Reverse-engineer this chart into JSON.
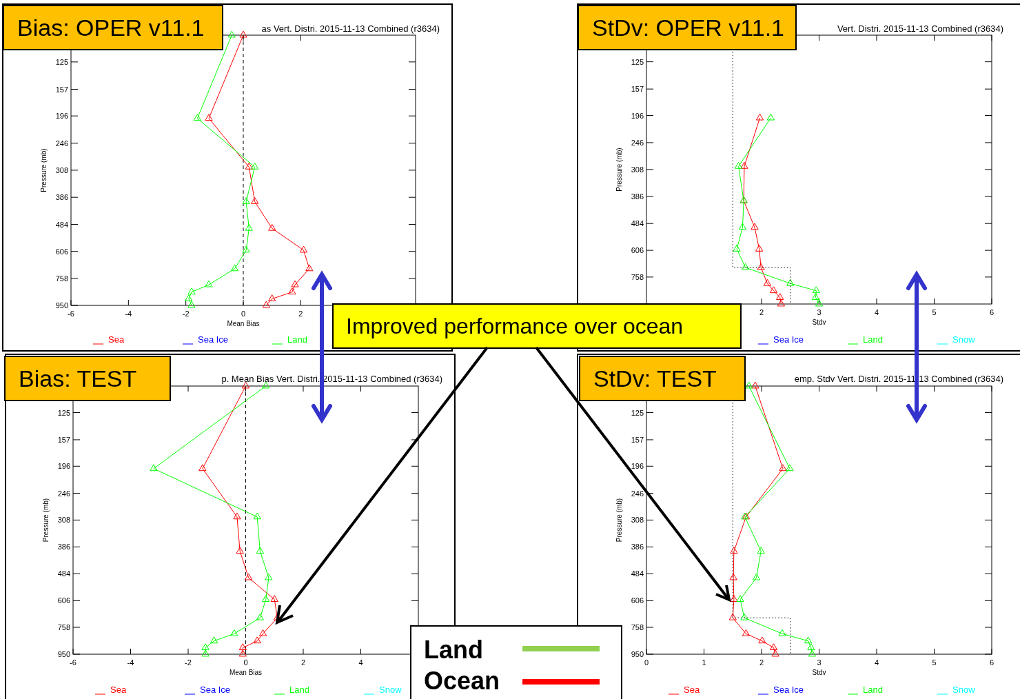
{
  "chart_data": [
    {
      "type": "line",
      "title": "Bias: OPER v11.1",
      "subtitle": "as Vert. Distri. 2015-11-13 Combined (r3634)",
      "xlabel": "Mean Bias",
      "ylabel": "Pressure (mb)",
      "xlim": [
        -6,
        6
      ],
      "xticks": [
        -6,
        -4,
        -2,
        0,
        2
      ],
      "ylim": [
        950,
        100
      ],
      "yticks": [
        125,
        157,
        196,
        246,
        308,
        386,
        484,
        606,
        758,
        950
      ],
      "log": "y",
      "marker": "triangle",
      "legend": "bottom",
      "ref_lines": [
        {
          "axis": "x",
          "value": 0,
          "color": "#000000",
          "line_style": "dashed"
        }
      ],
      "series": [
        {
          "name": "Sea",
          "color": "#ff0000",
          "x": [
            0.0,
            -1.2,
            0.2,
            0.4,
            1.0,
            2.1,
            2.3,
            1.8,
            1.7,
            1.0,
            0.8
          ],
          "values": [
            100,
            200,
            300,
            400,
            500,
            600,
            700,
            800,
            850,
            900,
            950
          ]
        },
        {
          "name": "Sea Ice",
          "color": "#0000ff"
        },
        {
          "name": "Land",
          "color": "#00ff00",
          "x": [
            -0.4,
            -1.6,
            0.4,
            0.1,
            0.2,
            0.1,
            -0.3,
            -1.2,
            -1.8,
            -1.9,
            -1.8
          ],
          "values": [
            100,
            200,
            300,
            400,
            500,
            600,
            700,
            800,
            850,
            900,
            950
          ]
        }
      ]
    },
    {
      "type": "line",
      "title": "StDv: OPER v11.1",
      "subtitle": "Vert. Distri. 2015-11-13 Combined (r3634)",
      "xlabel": "Stdv",
      "ylabel": "Pressure (mb)",
      "xlim": [
        0,
        6
      ],
      "xticks": [
        2,
        3,
        4,
        5,
        6
      ],
      "ylim": [
        950,
        100
      ],
      "yticks": [
        125,
        157,
        196,
        246,
        308,
        386,
        484,
        606,
        758
      ],
      "log": "y",
      "marker": "triangle",
      "legend": "bottom",
      "series": [
        {
          "color": "#ff0000",
          "x": [
            null,
            1.97,
            1.7,
            1.69,
            1.88,
            1.96,
            1.99,
            2.1,
            2.21,
            2.32,
            2.34
          ],
          "values": [
            null,
            200,
            300,
            400,
            500,
            600,
            700,
            800,
            850,
            900,
            950
          ]
        },
        {
          "name": "Sea Ice",
          "color": "#0000ff"
        },
        {
          "name": "Land",
          "color": "#00ff00",
          "x": [
            null,
            2.16,
            1.6,
            1.69,
            1.67,
            1.57,
            1.72,
            2.5,
            2.95,
            2.94,
            3.0
          ],
          "values": [
            null,
            200,
            300,
            400,
            500,
            600,
            700,
            800,
            850,
            900,
            950
          ]
        },
        {
          "name": "Snow",
          "color": "#00ffff"
        },
        {
          "type": "line",
          "color": "#000000",
          "line_style": "dotted",
          "marker": "none",
          "x": [
            1.5,
            1.5,
            2.5,
            2.5
          ],
          "values": [
            115,
            700,
            700,
            950
          ]
        }
      ]
    },
    {
      "type": "line",
      "title": "Bias: TEST",
      "subtitle": "p. Mean Bias Vert. Distri. 2015-11-13 Combined (r3634)",
      "xlabel": "Mean Bias",
      "ylabel": "Pressure (mb)",
      "xlim": [
        -6,
        6
      ],
      "xticks": [
        -6,
        -4,
        -2,
        0,
        2,
        4
      ],
      "ylim": [
        950,
        100
      ],
      "yticks": [
        125,
        157,
        196,
        246,
        308,
        386,
        484,
        606,
        758,
        950
      ],
      "log": "y",
      "marker": "triangle",
      "legend": "bottom",
      "ref_lines": [
        {
          "axis": "x",
          "value": 0,
          "color": "#000000",
          "line_style": "dashed"
        }
      ],
      "series": [
        {
          "name": "Sea",
          "color": "#ff0000",
          "x": [
            0.0,
            -1.5,
            -0.3,
            -0.2,
            0.1,
            1.0,
            1.1,
            0.6,
            0.4,
            -0.1,
            -0.1
          ],
          "values": [
            100,
            200,
            300,
            400,
            500,
            600,
            700,
            800,
            850,
            900,
            950
          ]
        },
        {
          "name": "Sea Ice",
          "color": "#0000ff"
        },
        {
          "name": "Land",
          "color": "#00ff00",
          "x": [
            0.7,
            -3.2,
            0.4,
            0.5,
            0.8,
            0.7,
            0.5,
            -0.4,
            -1.1,
            -1.4,
            -1.4
          ],
          "values": [
            100,
            200,
            300,
            400,
            500,
            600,
            700,
            800,
            850,
            900,
            950
          ]
        },
        {
          "name": "Snow",
          "color": "#00ffff"
        }
      ]
    },
    {
      "type": "line",
      "title": "StDv: TEST",
      "subtitle": "emp. Stdv Vert. Distri. 2015-11-13 Combined (r3634)",
      "xlabel": "Stdv",
      "ylabel": "Pressure (mb)",
      "xlim": [
        0,
        6
      ],
      "xticks": [
        0,
        1,
        2,
        3,
        4,
        5,
        6
      ],
      "ylim": [
        950,
        100
      ],
      "yticks": [
        125,
        157,
        196,
        246,
        308,
        386,
        484,
        606,
        758,
        950
      ],
      "log": "y",
      "marker": "triangle",
      "legend": "bottom",
      "series": [
        {
          "name": "Sea",
          "color": "#ff0000",
          "x": [
            1.89,
            2.37,
            1.73,
            1.52,
            1.51,
            1.52,
            1.5,
            1.73,
            2.01,
            2.21,
            2.24
          ],
          "values": [
            100,
            200,
            300,
            400,
            500,
            600,
            700,
            800,
            850,
            900,
            950
          ]
        },
        {
          "name": "Sea Ice",
          "color": "#0000ff"
        },
        {
          "name": "Land",
          "color": "#00ff00",
          "x": [
            1.78,
            2.49,
            1.71,
            1.99,
            1.91,
            1.63,
            1.7,
            2.36,
            2.81,
            2.86,
            2.88
          ],
          "values": [
            100,
            200,
            300,
            400,
            500,
            600,
            700,
            800,
            850,
            900,
            950
          ]
        },
        {
          "name": "Snow",
          "color": "#00ffff"
        },
        {
          "type": "line",
          "color": "#000000",
          "line_style": "dotted",
          "marker": "none",
          "x": [
            1.5,
            1.5,
            2.5,
            2.5
          ],
          "values": [
            115,
            700,
            700,
            950
          ]
        }
      ]
    },
    {
      "type": "other",
      "annotations": [
        "Improved performance over ocean",
        "Land",
        "Ocean"
      ]
    }
  ]
}
